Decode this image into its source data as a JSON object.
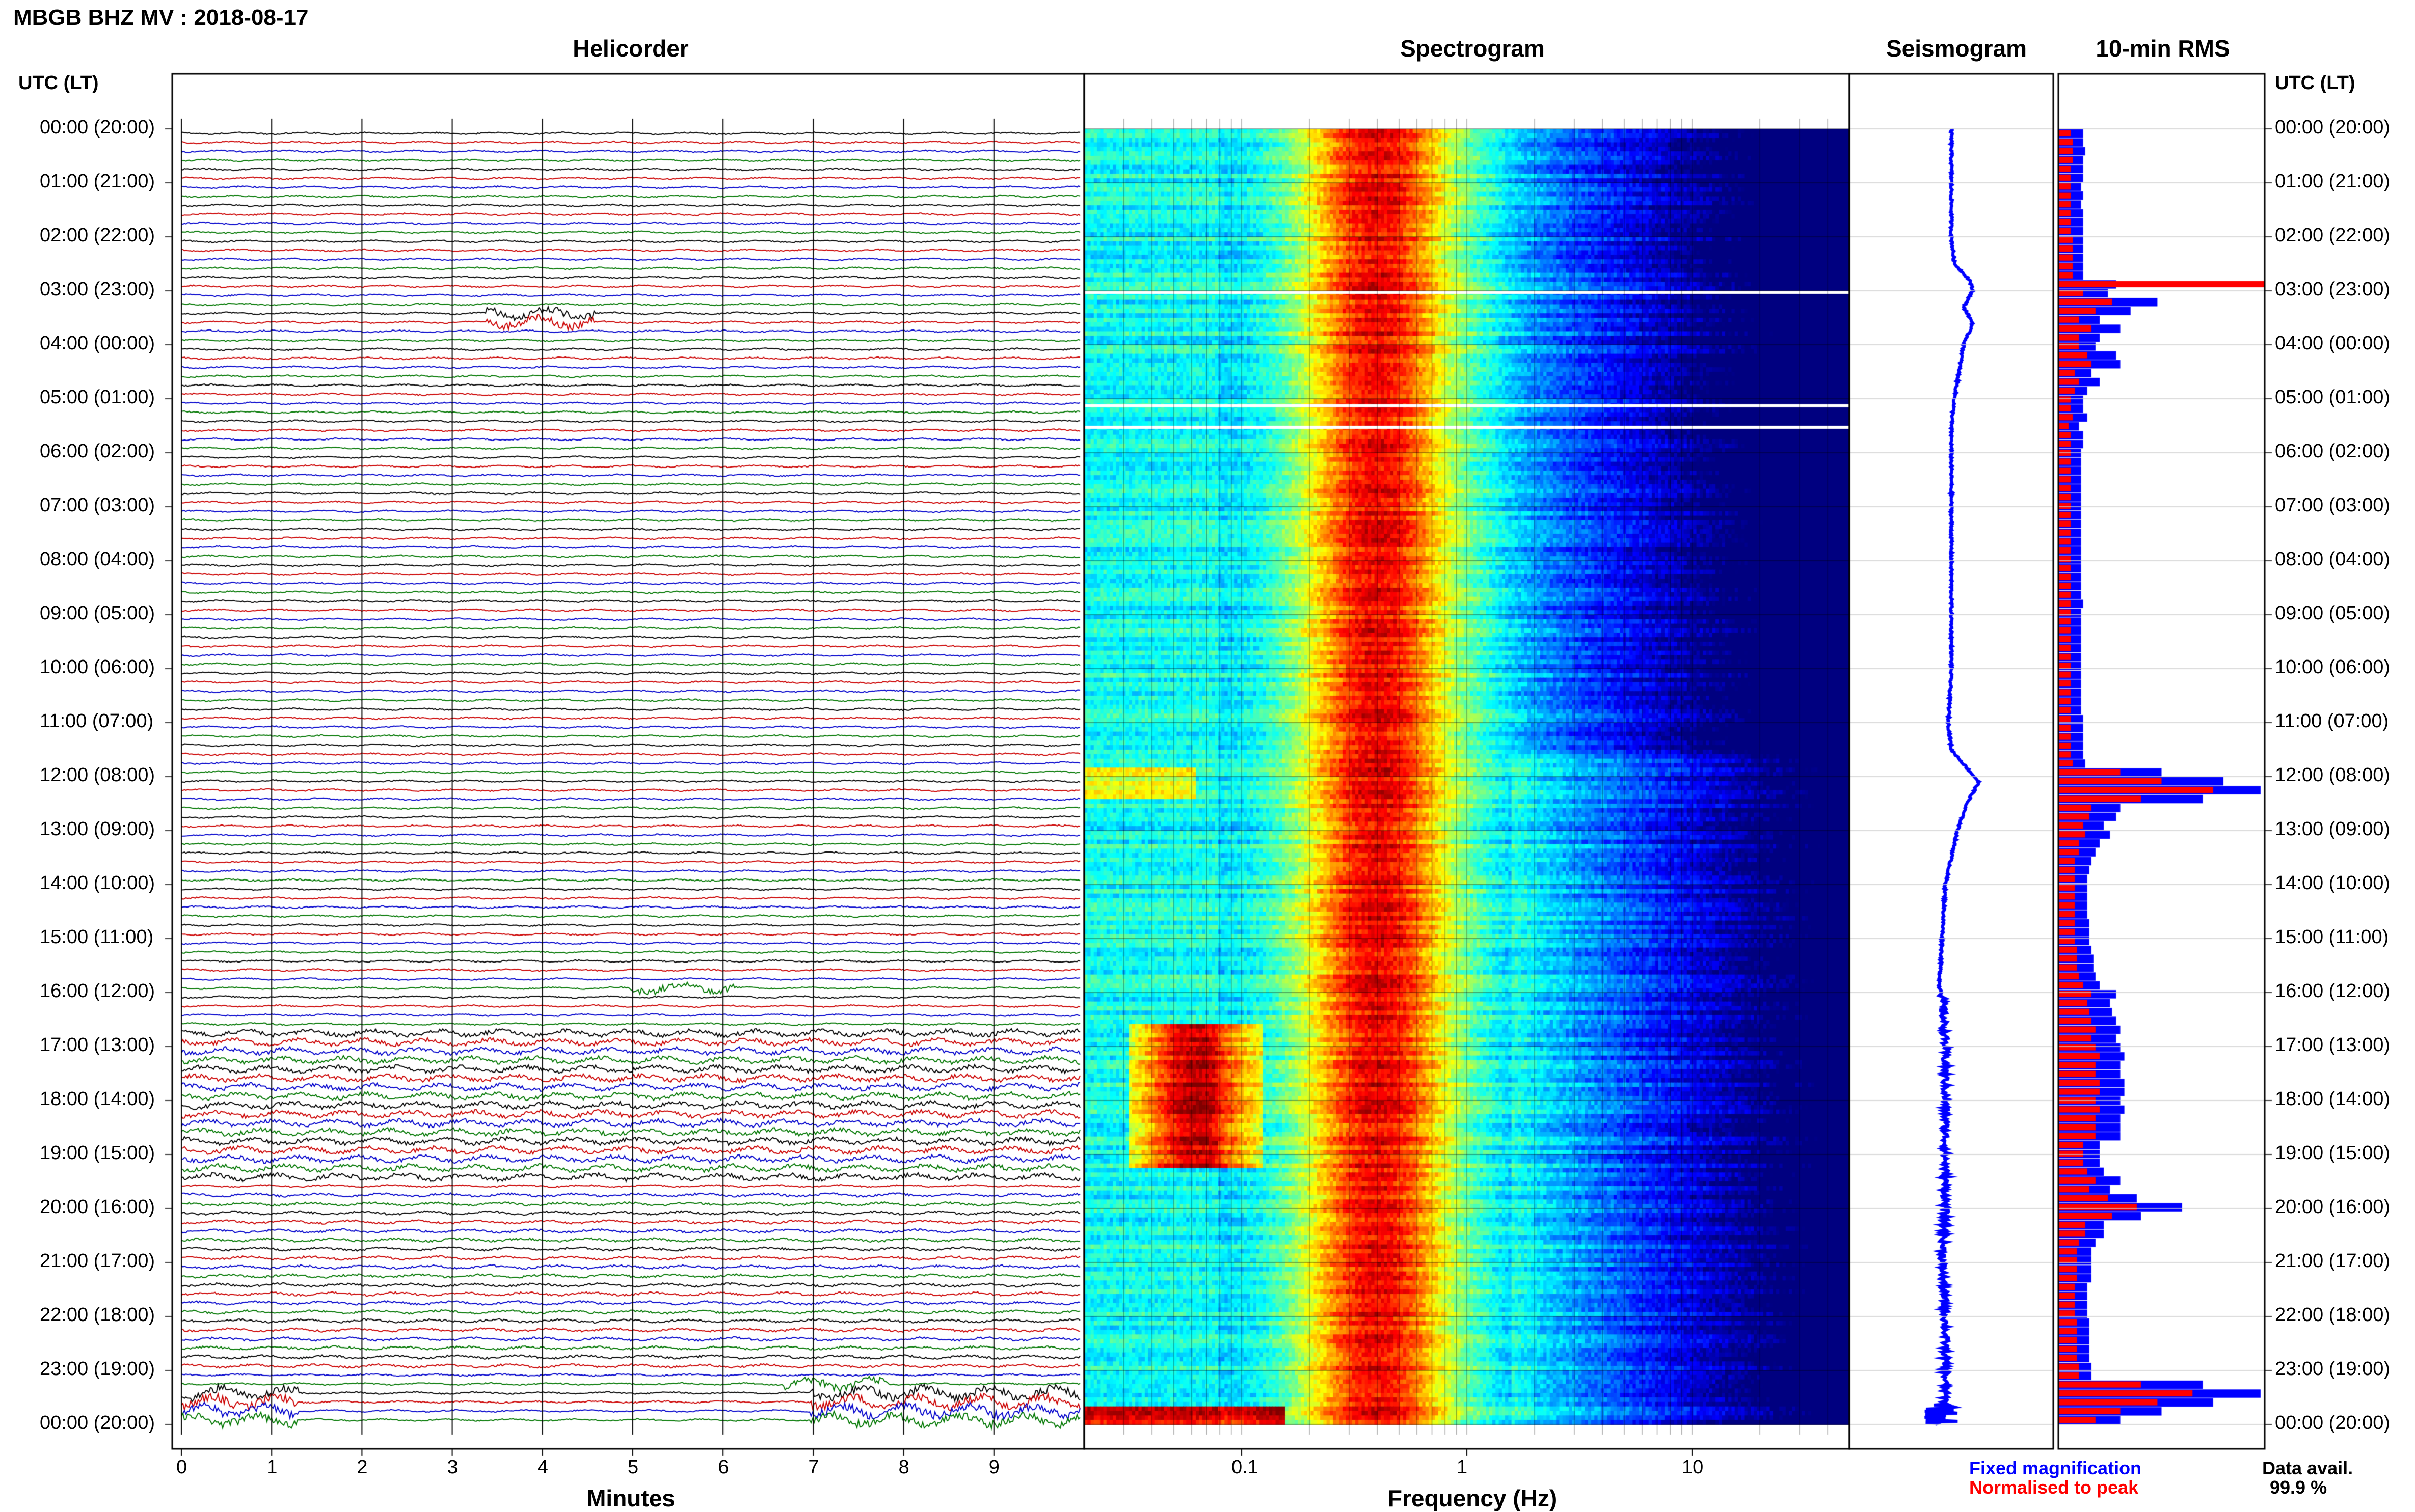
{
  "title": "MBGB BHZ MV : 2018-08-17",
  "panels": {
    "helicorder": "Helicorder",
    "spectrogram": "Spectrogram",
    "seismogram": "Seismogram",
    "rms": "10-min RMS"
  },
  "utc_header": "UTC (LT)",
  "time_labels": [
    "00:00 (20:00)",
    "01:00 (21:00)",
    "02:00 (22:00)",
    "03:00 (23:00)",
    "04:00 (00:00)",
    "05:00 (01:00)",
    "06:00 (02:00)",
    "07:00 (03:00)",
    "08:00 (04:00)",
    "09:00 (05:00)",
    "10:00 (06:00)",
    "11:00 (07:00)",
    "12:00 (08:00)",
    "13:00 (09:00)",
    "14:00 (10:00)",
    "15:00 (11:00)",
    "16:00 (12:00)",
    "17:00 (13:00)",
    "18:00 (14:00)",
    "19:00 (15:00)",
    "20:00 (16:00)",
    "21:00 (17:00)",
    "22:00 (18:00)",
    "23:00 (19:00)",
    "00:00 (20:00)"
  ],
  "helicorder_xlabel": "Minutes",
  "helicorder_ticks": [
    "0",
    "1",
    "2",
    "3",
    "4",
    "5",
    "6",
    "7",
    "8",
    "9"
  ],
  "spectrogram_xlabel": "Frequency (Hz)",
  "spectrogram_ticks": [
    "0.1",
    "1",
    "10"
  ],
  "legend": {
    "fixed": "Fixed magnification",
    "normalised": "Normalised to peak",
    "fixed_color": "#0000ff",
    "normalised_color": "#ff0000"
  },
  "data_avail": {
    "label": "Data avail.",
    "value": "99.9 %"
  },
  "colors": {
    "trace_cycle": [
      "#000000",
      "#cc0000",
      "#0000cc",
      "#007700"
    ],
    "rms_fixed": "#0000ff",
    "rms_normalised": "#ff0000",
    "seismogram": "#0000ff",
    "spectrogram_low": "#00008b",
    "spectrogram_high": "#ff0000"
  },
  "chart_data": [
    {
      "type": "line",
      "name": "Helicorder",
      "xlabel": "Minutes",
      "xlim": [
        0,
        10
      ],
      "rows_per_hour": 6,
      "row_minutes": 10,
      "events": [
        {
          "utc_hour": 3.4,
          "minute": 4.0,
          "note": "small burst"
        },
        {
          "utc_hour": 15.8,
          "minute": 5.6,
          "note": "small burst"
        },
        {
          "utc_hour": 23.2,
          "minute": 7.3,
          "note": "large amplitude"
        },
        {
          "utc_hour": 23.8,
          "minute": 0.3,
          "note": "large amplitude"
        }
      ]
    },
    {
      "type": "heatmap",
      "name": "Spectrogram",
      "xlabel": "Frequency (Hz)",
      "xscale": "log",
      "xlim": [
        0.02,
        50
      ],
      "peak_band_hz": [
        0.2,
        1.0
      ],
      "microseism_event_utc": [
        16.5,
        19.2
      ],
      "data_gaps_utc": [
        3.0,
        5.1,
        5.5
      ]
    },
    {
      "type": "line",
      "name": "Seismogram",
      "description_values": "offset drift over day",
      "utc_hours": [
        0,
        1,
        2,
        2.5,
        2.8,
        3.0,
        3.3,
        3.6,
        4,
        5,
        5.5,
        6,
        7,
        8,
        9,
        10,
        11,
        11.5,
        11.9,
        12.1,
        12.5,
        13,
        14,
        15,
        15.9,
        16,
        17,
        18,
        19,
        20,
        21,
        22,
        23,
        23.6,
        23.9,
        24
      ],
      "offset": [
        0.0,
        0.0,
        0.0,
        0.05,
        0.3,
        0.35,
        0.2,
        0.35,
        0.2,
        0.05,
        0.0,
        0.0,
        0.0,
        0.0,
        0.0,
        0.0,
        -0.05,
        0.0,
        0.3,
        0.45,
        0.25,
        0.1,
        -0.1,
        -0.15,
        -0.2,
        -0.15,
        -0.1,
        -0.1,
        -0.1,
        -0.1,
        -0.15,
        -0.1,
        -0.1,
        -0.1,
        -0.2,
        -0.1
      ]
    },
    {
      "type": "bar",
      "name": "10-min RMS",
      "orientation": "horizontal",
      "bin_minutes": 10,
      "series": [
        {
          "name": "Fixed magnification",
          "color": "#0000ff",
          "values": [
            0.12,
            0.12,
            0.13,
            0.12,
            0.12,
            0.12,
            0.11,
            0.12,
            0.11,
            0.12,
            0.12,
            0.12,
            0.12,
            0.12,
            0.12,
            0.12,
            0.12,
            0.28,
            0.24,
            0.48,
            0.35,
            0.2,
            0.3,
            0.2,
            0.18,
            0.28,
            0.3,
            0.16,
            0.2,
            0.14,
            0.12,
            0.12,
            0.14,
            0.1,
            0.12,
            0.12,
            0.11,
            0.11,
            0.11,
            0.11,
            0.11,
            0.11,
            0.11,
            0.11,
            0.11,
            0.11,
            0.11,
            0.11,
            0.11,
            0.11,
            0.11,
            0.11,
            0.11,
            0.12,
            0.11,
            0.11,
            0.11,
            0.11,
            0.11,
            0.11,
            0.11,
            0.11,
            0.11,
            0.11,
            0.11,
            0.11,
            0.12,
            0.12,
            0.12,
            0.12,
            0.12,
            0.13,
            0.5,
            0.8,
            0.98,
            0.7,
            0.3,
            0.28,
            0.22,
            0.25,
            0.2,
            0.18,
            0.16,
            0.15,
            0.14,
            0.14,
            0.14,
            0.14,
            0.14,
            0.15,
            0.15,
            0.15,
            0.16,
            0.17,
            0.17,
            0.18,
            0.2,
            0.28,
            0.25,
            0.26,
            0.28,
            0.3,
            0.28,
            0.3,
            0.32,
            0.3,
            0.3,
            0.32,
            0.32,
            0.3,
            0.32,
            0.3,
            0.3,
            0.3,
            0.2,
            0.2,
            0.2,
            0.22,
            0.3,
            0.25,
            0.38,
            0.6,
            0.4,
            0.22,
            0.22,
            0.18,
            0.16,
            0.16,
            0.16,
            0.16,
            0.14,
            0.14,
            0.14,
            0.14,
            0.15,
            0.15,
            0.15,
            0.15,
            0.15,
            0.16,
            0.16,
            0.7,
            0.98,
            0.75,
            0.5,
            0.3
          ]
        },
        {
          "name": "Normalised to peak",
          "color": "#ff0000",
          "values": [
            0.06,
            0.07,
            0.07,
            0.07,
            0.06,
            0.06,
            0.06,
            0.06,
            0.06,
            0.06,
            0.06,
            0.06,
            0.07,
            0.07,
            0.07,
            0.07,
            0.07,
            1.0,
            0.12,
            0.26,
            0.18,
            0.1,
            0.16,
            0.1,
            0.1,
            0.14,
            0.16,
            0.08,
            0.1,
            0.08,
            0.06,
            0.06,
            0.07,
            0.05,
            0.06,
            0.06,
            0.06,
            0.06,
            0.06,
            0.06,
            0.06,
            0.06,
            0.06,
            0.06,
            0.06,
            0.06,
            0.06,
            0.06,
            0.06,
            0.06,
            0.06,
            0.06,
            0.06,
            0.06,
            0.06,
            0.06,
            0.06,
            0.06,
            0.06,
            0.06,
            0.06,
            0.06,
            0.06,
            0.06,
            0.06,
            0.06,
            0.06,
            0.06,
            0.06,
            0.06,
            0.06,
            0.07,
            0.3,
            0.5,
            0.75,
            0.4,
            0.16,
            0.15,
            0.12,
            0.13,
            0.1,
            0.1,
            0.08,
            0.08,
            0.08,
            0.08,
            0.08,
            0.08,
            0.08,
            0.08,
            0.08,
            0.08,
            0.09,
            0.09,
            0.09,
            0.1,
            0.12,
            0.16,
            0.14,
            0.15,
            0.16,
            0.18,
            0.16,
            0.18,
            0.2,
            0.18,
            0.18,
            0.2,
            0.2,
            0.18,
            0.2,
            0.18,
            0.18,
            0.18,
            0.12,
            0.12,
            0.12,
            0.14,
            0.18,
            0.15,
            0.24,
            0.38,
            0.26,
            0.13,
            0.13,
            0.1,
            0.09,
            0.09,
            0.09,
            0.09,
            0.08,
            0.08,
            0.08,
            0.08,
            0.09,
            0.09,
            0.09,
            0.09,
            0.09,
            0.1,
            0.1,
            0.4,
            0.65,
            0.48,
            0.3,
            0.18
          ]
        }
      ]
    }
  ]
}
